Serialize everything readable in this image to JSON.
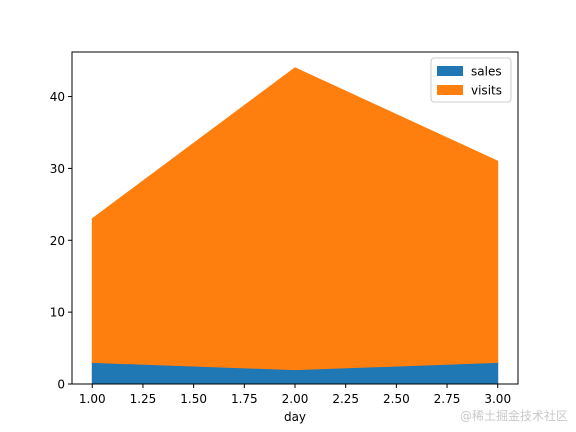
{
  "chart_data": {
    "type": "area",
    "stacked": true,
    "x": [
      1.0,
      2.0,
      3.0
    ],
    "series": [
      {
        "name": "sales",
        "values": [
          3,
          2,
          3
        ],
        "color": "#1f77b4"
      },
      {
        "name": "visits",
        "values": [
          20,
          42,
          28
        ],
        "color": "#ff7f0e"
      }
    ],
    "xlabel": "day",
    "ylabel": "",
    "xlim": [
      0.9,
      3.1
    ],
    "ylim": [
      0,
      46.2
    ],
    "xticks": [
      1.0,
      1.25,
      1.5,
      1.75,
      2.0,
      2.25,
      2.5,
      2.75,
      3.0
    ],
    "xtick_labels": [
      "1.00",
      "1.25",
      "1.50",
      "1.75",
      "2.00",
      "2.25",
      "2.50",
      "2.75",
      "3.00"
    ],
    "yticks": [
      0,
      10,
      20,
      30,
      40
    ],
    "ytick_labels": [
      "0",
      "10",
      "20",
      "30",
      "40"
    ],
    "grid": false,
    "legend_position": "top-right"
  },
  "watermark": "@稀土掘金技术社区"
}
